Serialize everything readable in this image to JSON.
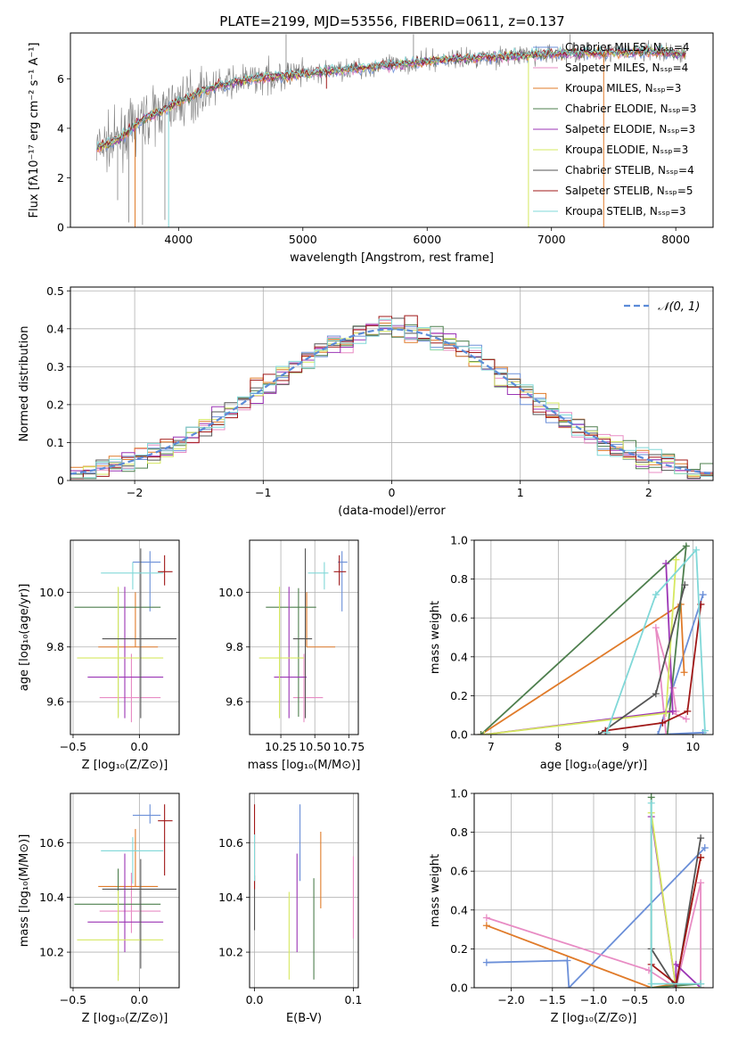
{
  "figure": {
    "title": "PLATE=2199, MJD=53556, FIBERID=0611, z=0.137"
  },
  "colors": {
    "Chabrier MILES": "#6b8fd8",
    "Salpeter MILES": "#e88cc4",
    "Kroupa MILES": "#e07b2a",
    "Chabrier ELODIE": "#4e7f4e",
    "Salpeter ELODIE": "#9b35b5",
    "Kroupa ELODIE": "#d6e860",
    "Chabrier STELIB": "#555555",
    "Salpeter STELIB": "#a01818",
    "Kroupa STELIB": "#80d8d8",
    "data": "#808080",
    "normal": "#5b8bd8"
  },
  "chart_data": [
    {
      "id": "spectrum",
      "type": "line",
      "xlabel": "wavelength [Angstrom, rest frame]",
      "ylabel": "Flux [fλ10⁻¹⁷ erg cm⁻² s⁻¹ A⁻¹]",
      "xlim": [
        3130,
        8300
      ],
      "ylim": [
        0,
        7.85
      ],
      "xticks": [
        4000,
        5000,
        6000,
        7000,
        8000
      ],
      "yticks": [
        0,
        2,
        4,
        6
      ],
      "legend_loc": "upper-right",
      "legend": [
        "Chabrier MILES, Nₛₛₚ=4",
        "Salpeter MILES, Nₛₛₚ=4",
        "Kroupa MILES, Nₛₛₚ=3",
        "Chabrier ELODIE, Nₛₛₚ=3",
        "Salpeter ELODIE, Nₛₛₚ=3",
        "Kroupa ELODIE, Nₛₛₚ=3",
        "Chabrier STELIB, Nₛₛₚ=4",
        "Salpeter STELIB, Nₛₛₚ=5",
        "Kroupa STELIB, Nₛₛₚ=3"
      ],
      "continuum": {
        "x": [
          3340,
          3500,
          3700,
          3900,
          4100,
          4300,
          4600,
          5000,
          5400,
          5800,
          6200,
          6600,
          7000,
          7400,
          7800,
          8080
        ],
        "y": [
          3.2,
          3.5,
          4.3,
          4.8,
          5.3,
          5.7,
          6.0,
          6.2,
          6.4,
          6.6,
          6.8,
          6.9,
          7.0,
          7.05,
          7.1,
          7.0
        ]
      },
      "data_spikes": [
        {
          "x": 3510,
          "y": 1.1
        },
        {
          "x": 3600,
          "y": 0.2
        },
        {
          "x": 3710,
          "y": 0.1
        },
        {
          "x": 3890,
          "y": 0.3
        },
        {
          "x": 4865,
          "y": 7.8
        },
        {
          "x": 5890,
          "y": 7.8
        },
        {
          "x": 7150,
          "y": 7.8
        }
      ],
      "model_drops": [
        {
          "x": 3650,
          "y": 0,
          "series": "Kroupa MILES"
        },
        {
          "x": 3920,
          "y": 0,
          "series": "Kroupa STELIB"
        },
        {
          "x": 5190,
          "y": 5.6,
          "series": "Salpeter STELIB"
        },
        {
          "x": 6815,
          "y": 0,
          "series": "Kroupa ELODIE"
        },
        {
          "x": 7420,
          "y": 0,
          "series": "Kroupa MILES"
        }
      ]
    },
    {
      "id": "residuals",
      "type": "histogram",
      "xlabel": "(data-model)/error",
      "ylabel": "Normed distribution",
      "xlim": [
        -2.5,
        2.5
      ],
      "ylim": [
        0,
        0.51
      ],
      "xticks": [
        -2,
        -1,
        0,
        1,
        2
      ],
      "yticks": [
        0.0,
        0.1,
        0.2,
        0.3,
        0.4,
        0.5
      ],
      "grid": true,
      "legend_loc": "upper-right",
      "normal_label": "𝒩(0, 1)",
      "bin_width": 0.1
    },
    {
      "id": "age-vs-Z",
      "type": "errorbar",
      "xlabel": "Z [log₁₀(Z/Z⊙)]",
      "ylabel": "age  [log₁₀(age/yr)]",
      "xlim": [
        -0.52,
        0.3
      ],
      "ylim": [
        9.48,
        10.19
      ],
      "xticks": [
        -0.5,
        0.0
      ],
      "xtick_labels": [
        "−0.5",
        "0.0"
      ],
      "yticks": [
        9.6,
        9.8,
        10.0
      ],
      "yticks_fmt": 1,
      "grid": true,
      "points": [
        {
          "series": "Chabrier MILES",
          "x": 0.08,
          "xerr": [
            0.13,
            0.08
          ],
          "y": 10.11,
          "yerr": [
            0.18,
            0.04
          ]
        },
        {
          "series": "Salpeter MILES",
          "x": -0.06,
          "xerr": [
            0.24,
            0.22
          ],
          "y": 9.615,
          "yerr": [
            0.09,
            0.16
          ]
        },
        {
          "series": "Kroupa MILES",
          "x": -0.03,
          "xerr": [
            0.28,
            0.17
          ],
          "y": 9.8,
          "yerr": [
            0.0,
            0.2
          ]
        },
        {
          "series": "Chabrier ELODIE",
          "x": -0.16,
          "xerr": [
            0.33,
            0.32
          ],
          "y": 9.945,
          "yerr": [
            0.4,
            0.07
          ]
        },
        {
          "series": "Salpeter ELODIE",
          "x": -0.11,
          "xerr": [
            0.28,
            0.29
          ],
          "y": 9.69,
          "yerr": [
            0.15,
            0.33
          ]
        },
        {
          "series": "Kroupa ELODIE",
          "x": -0.16,
          "xerr": [
            0.31,
            0.34
          ],
          "y": 9.76,
          "yerr": [
            0.22,
            0.26
          ]
        },
        {
          "series": "Chabrier STELIB",
          "x": 0.01,
          "xerr": [
            0.29,
            0.27
          ],
          "y": 9.83,
          "yerr": [
            0.29,
            0.33
          ]
        },
        {
          "series": "Salpeter STELIB",
          "x": 0.19,
          "xerr": [
            0.05,
            0.06
          ],
          "y": 10.075,
          "yerr": [
            0.05,
            0.06
          ]
        },
        {
          "series": "Kroupa STELIB",
          "x": -0.05,
          "xerr": [
            0.24,
            0.23
          ],
          "y": 10.07,
          "yerr": [
            0.06,
            0.04
          ]
        }
      ]
    },
    {
      "id": "age-vs-mass",
      "type": "errorbar",
      "xlabel": "mass [log₁₀(M/M⊙)]",
      "ylabel": "",
      "xlim": [
        10.02,
        10.82
      ],
      "ylim": [
        9.48,
        10.19
      ],
      "xticks": [
        10.25,
        10.5,
        10.75
      ],
      "xtick_labels": [
        "10.25",
        "10.50",
        "10.75"
      ],
      "yticks": [
        9.6,
        9.8,
        10.0
      ],
      "yticks_fmt": 1,
      "grid": true,
      "points": [
        {
          "series": "Chabrier MILES",
          "x": 10.7,
          "xerr": [
            0.03,
            0.04
          ],
          "y": 10.11,
          "yerr": [
            0.18,
            0.04
          ]
        },
        {
          "series": "Salpeter MILES",
          "x": 10.42,
          "xerr": [
            0.08,
            0.14
          ],
          "y": 9.615,
          "yerr": [
            0.09,
            0.16
          ]
        },
        {
          "series": "Kroupa MILES",
          "x": 10.44,
          "xerr": [
            0.0,
            0.21
          ],
          "y": 9.8,
          "yerr": [
            0.0,
            0.2
          ]
        },
        {
          "series": "Chabrier ELODIE",
          "x": 10.38,
          "xerr": [
            0.24,
            0.13
          ],
          "y": 9.945,
          "yerr": [
            0.4,
            0.07
          ]
        },
        {
          "series": "Salpeter ELODIE",
          "x": 10.31,
          "xerr": [
            0.11,
            0.13
          ],
          "y": 9.69,
          "yerr": [
            0.15,
            0.33
          ]
        },
        {
          "series": "Kroupa ELODIE",
          "x": 10.24,
          "xerr": [
            0.15,
            0.18
          ],
          "y": 9.76,
          "yerr": [
            0.22,
            0.26
          ]
        },
        {
          "series": "Chabrier STELIB",
          "x": 10.43,
          "xerr": [
            0.09,
            0.05
          ],
          "y": 9.83,
          "yerr": [
            0.29,
            0.33
          ]
        },
        {
          "series": "Salpeter STELIB",
          "x": 10.68,
          "xerr": [
            0.04,
            0.05
          ],
          "y": 10.075,
          "yerr": [
            0.05,
            0.06
          ]
        },
        {
          "series": "Kroupa STELIB",
          "x": 10.57,
          "xerr": [
            0.12,
            0.03
          ],
          "y": 10.07,
          "yerr": [
            0.06,
            0.04
          ]
        }
      ]
    },
    {
      "id": "mass-weight-vs-age",
      "type": "line",
      "xlabel": "age  [log₁₀(age/yr)]",
      "ylabel": "mass weight",
      "xlim": [
        6.75,
        10.3
      ],
      "ylim": [
        0,
        1
      ],
      "xticks": [
        7,
        8,
        9,
        10
      ],
      "yticks": [
        0.0,
        0.2,
        0.4,
        0.6,
        0.8,
        1.0
      ],
      "yticks_fmt": 1,
      "grid": true,
      "series": [
        {
          "name": "Chabrier MILES",
          "x": [
            10.15,
            9.48,
            10.15
          ],
          "y": [
            0.01,
            0.0,
            0.72
          ]
        },
        {
          "name": "Salpeter MILES",
          "x": [
            9.6,
            9.45,
            9.7,
            9.75,
            9.65,
            9.9
          ],
          "y": [
            0.0,
            0.55,
            0.24,
            0.12,
            0.12,
            0.08
          ]
        },
        {
          "name": "Kroupa MILES",
          "x": [
            6.85,
            9.82,
            9.87
          ],
          "y": [
            0.0,
            0.67,
            0.32
          ]
        },
        {
          "name": "Chabrier ELODIE",
          "x": [
            6.85,
            9.9,
            9.62
          ],
          "y": [
            0.0,
            0.97,
            0.0
          ]
        },
        {
          "name": "Salpeter ELODIE",
          "x": [
            6.9,
            9.7,
            9.6
          ],
          "y": [
            0.0,
            0.12,
            0.88
          ]
        },
        {
          "name": "Kroupa ELODIE",
          "x": [
            6.9,
            9.6,
            9.75
          ],
          "y": [
            0.0,
            0.11,
            0.9
          ]
        },
        {
          "name": "Chabrier STELIB",
          "x": [
            8.6,
            9.45,
            9.88
          ],
          "y": [
            0.0,
            0.21,
            0.77
          ]
        },
        {
          "name": "Salpeter STELIB",
          "x": [
            8.7,
            9.55,
            9.92,
            10.12
          ],
          "y": [
            0.02,
            0.06,
            0.12,
            0.67
          ]
        },
        {
          "name": "Kroupa STELIB",
          "x": [
            8.72,
            9.45,
            10.05,
            10.18
          ],
          "y": [
            0.01,
            0.72,
            0.95,
            0.02
          ]
        }
      ]
    },
    {
      "id": "mass-vs-Z",
      "type": "errorbar",
      "xlabel": "Z [log₁₀(Z/Z⊙)]",
      "ylabel": "mass [log₁₀(M/M⊙)]",
      "xlim": [
        -0.52,
        0.3
      ],
      "ylim": [
        10.07,
        10.78
      ],
      "xticks": [
        -0.5,
        0.0
      ],
      "xtick_labels": [
        "−0.5",
        "0.0"
      ],
      "yticks": [
        10.2,
        10.4,
        10.6
      ],
      "yticks_fmt": 1,
      "grid": true,
      "points": [
        {
          "series": "Chabrier MILES",
          "x": 0.08,
          "xerr": [
            0.13,
            0.08
          ],
          "y": 10.7,
          "yerr": [
            0.03,
            0.04
          ]
        },
        {
          "series": "Salpeter MILES",
          "x": -0.06,
          "xerr": [
            0.24,
            0.22
          ],
          "y": 10.35,
          "yerr": [
            0.08,
            0.14
          ]
        },
        {
          "series": "Kroupa MILES",
          "x": -0.03,
          "xerr": [
            0.28,
            0.17
          ],
          "y": 10.44,
          "yerr": [
            0.0,
            0.21
          ]
        },
        {
          "series": "Chabrier ELODIE",
          "x": -0.16,
          "xerr": [
            0.33,
            0.32
          ],
          "y": 10.375,
          "yerr": [
            0.26,
            0.13
          ]
        },
        {
          "series": "Salpeter ELODIE",
          "x": -0.11,
          "xerr": [
            0.28,
            0.29
          ],
          "y": 10.31,
          "yerr": [
            0.11,
            0.25
          ]
        },
        {
          "series": "Kroupa ELODIE",
          "x": -0.16,
          "xerr": [
            0.31,
            0.34
          ],
          "y": 10.245,
          "yerr": [
            0.15,
            0.18
          ]
        },
        {
          "series": "Chabrier STELIB",
          "x": 0.01,
          "xerr": [
            0.29,
            0.27
          ],
          "y": 10.43,
          "yerr": [
            0.29,
            0.11
          ]
        },
        {
          "series": "Salpeter STELIB",
          "x": 0.19,
          "xerr": [
            0.05,
            0.06
          ],
          "y": 10.68,
          "yerr": [
            0.2,
            0.06
          ]
        },
        {
          "series": "Kroupa STELIB",
          "x": -0.05,
          "xerr": [
            0.24,
            0.23
          ],
          "y": 10.57,
          "yerr": [
            0.12,
            0.05
          ]
        }
      ]
    },
    {
      "id": "mass-vs-EBV",
      "type": "errorbar",
      "xlabel": "E(B-V)",
      "ylabel": "",
      "xlim": [
        -0.005,
        0.105
      ],
      "ylim": [
        10.07,
        10.78
      ],
      "xticks": [
        0.0,
        0.1
      ],
      "xtick_labels": [
        "0.0",
        "0.1"
      ],
      "yticks": [
        10.2,
        10.4,
        10.6
      ],
      "yticks_fmt": 1,
      "grid": true,
      "points": [
        {
          "series": "Chabrier MILES",
          "x": 0.046,
          "xerr": [
            0,
            0
          ],
          "y": 10.58,
          "yerr": [
            0.12,
            0.16
          ]
        },
        {
          "series": "Salpeter MILES",
          "x": 0.1,
          "xerr": [
            0,
            0
          ],
          "y": 10.35,
          "yerr": [
            0.1,
            0.2
          ]
        },
        {
          "series": "Kroupa MILES",
          "x": 0.067,
          "xerr": [
            0,
            0
          ],
          "y": 10.44,
          "yerr": [
            0.08,
            0.2
          ]
        },
        {
          "series": "Chabrier ELODIE",
          "x": 0.06,
          "xerr": [
            0,
            0
          ],
          "y": 10.3,
          "yerr": [
            0.2,
            0.17
          ]
        },
        {
          "series": "Salpeter ELODIE",
          "x": 0.043,
          "xerr": [
            0,
            0
          ],
          "y": 10.31,
          "yerr": [
            0.11,
            0.25
          ]
        },
        {
          "series": "Kroupa ELODIE",
          "x": 0.035,
          "xerr": [
            0,
            0
          ],
          "y": 10.24,
          "yerr": [
            0.14,
            0.18
          ]
        },
        {
          "series": "Chabrier STELIB",
          "x": 0.0,
          "xerr": [
            0,
            0
          ],
          "y": 10.4,
          "yerr": [
            0.12,
            0.08
          ]
        },
        {
          "series": "Salpeter STELIB",
          "x": 0.0,
          "xerr": [
            0,
            0
          ],
          "y": 10.63,
          "yerr": [
            0.2,
            0.11
          ]
        },
        {
          "series": "Kroupa STELIB",
          "x": 0.0,
          "xerr": [
            0,
            0
          ],
          "y": 10.55,
          "yerr": [
            0.09,
            0.08
          ]
        }
      ]
    },
    {
      "id": "mass-weight-vs-Z",
      "type": "line",
      "xlabel": "Z [log₁₀(Z/Z⊙)]",
      "ylabel": "mass weight",
      "xlim": [
        -2.45,
        0.45
      ],
      "ylim": [
        0,
        1
      ],
      "xticks": [
        -2.0,
        -1.5,
        -1.0,
        -0.5,
        0.0
      ],
      "xtick_labels": [
        "−2.0",
        "−1.5",
        "−1.0",
        "−0.5",
        "0.0"
      ],
      "yticks": [
        0.0,
        0.2,
        0.4,
        0.6,
        0.8,
        1.0
      ],
      "yticks_fmt": 1,
      "grid": true,
      "series": [
        {
          "name": "Chabrier MILES",
          "x": [
            -2.3,
            -1.32,
            -1.3,
            0.35
          ],
          "y": [
            0.13,
            0.14,
            0.0,
            0.72
          ]
        },
        {
          "name": "Salpeter MILES",
          "x": [
            -2.3,
            -0.33,
            0.0,
            0.3,
            0.3
          ],
          "y": [
            0.36,
            0.09,
            0.0,
            0.54,
            0.0
          ]
        },
        {
          "name": "Kroupa MILES",
          "x": [
            -2.3,
            -0.3,
            0.0,
            0.3
          ],
          "y": [
            0.32,
            0.0,
            0.02,
            0.67
          ]
        },
        {
          "name": "Chabrier ELODIE",
          "x": [
            -0.3,
            -0.3,
            0.3
          ],
          "y": [
            0.98,
            0.0,
            0.02
          ]
        },
        {
          "name": "Salpeter ELODIE",
          "x": [
            -0.3,
            0.0,
            0.0,
            0.3
          ],
          "y": [
            0.88,
            0.0,
            0.12,
            0.0
          ]
        },
        {
          "name": "Kroupa ELODIE",
          "x": [
            -0.3,
            0.0,
            0.3
          ],
          "y": [
            0.9,
            0.0,
            0.0
          ]
        },
        {
          "name": "Chabrier STELIB",
          "x": [
            -0.3,
            0.0,
            0.3
          ],
          "y": [
            0.2,
            0.0,
            0.77
          ]
        },
        {
          "name": "Salpeter STELIB",
          "x": [
            -0.3,
            0.0,
            0.3
          ],
          "y": [
            0.12,
            0.02,
            0.67
          ]
        },
        {
          "name": "Kroupa STELIB",
          "x": [
            -0.3,
            -0.3,
            0.3
          ],
          "y": [
            0.95,
            0.02,
            0.02
          ]
        }
      ]
    }
  ]
}
